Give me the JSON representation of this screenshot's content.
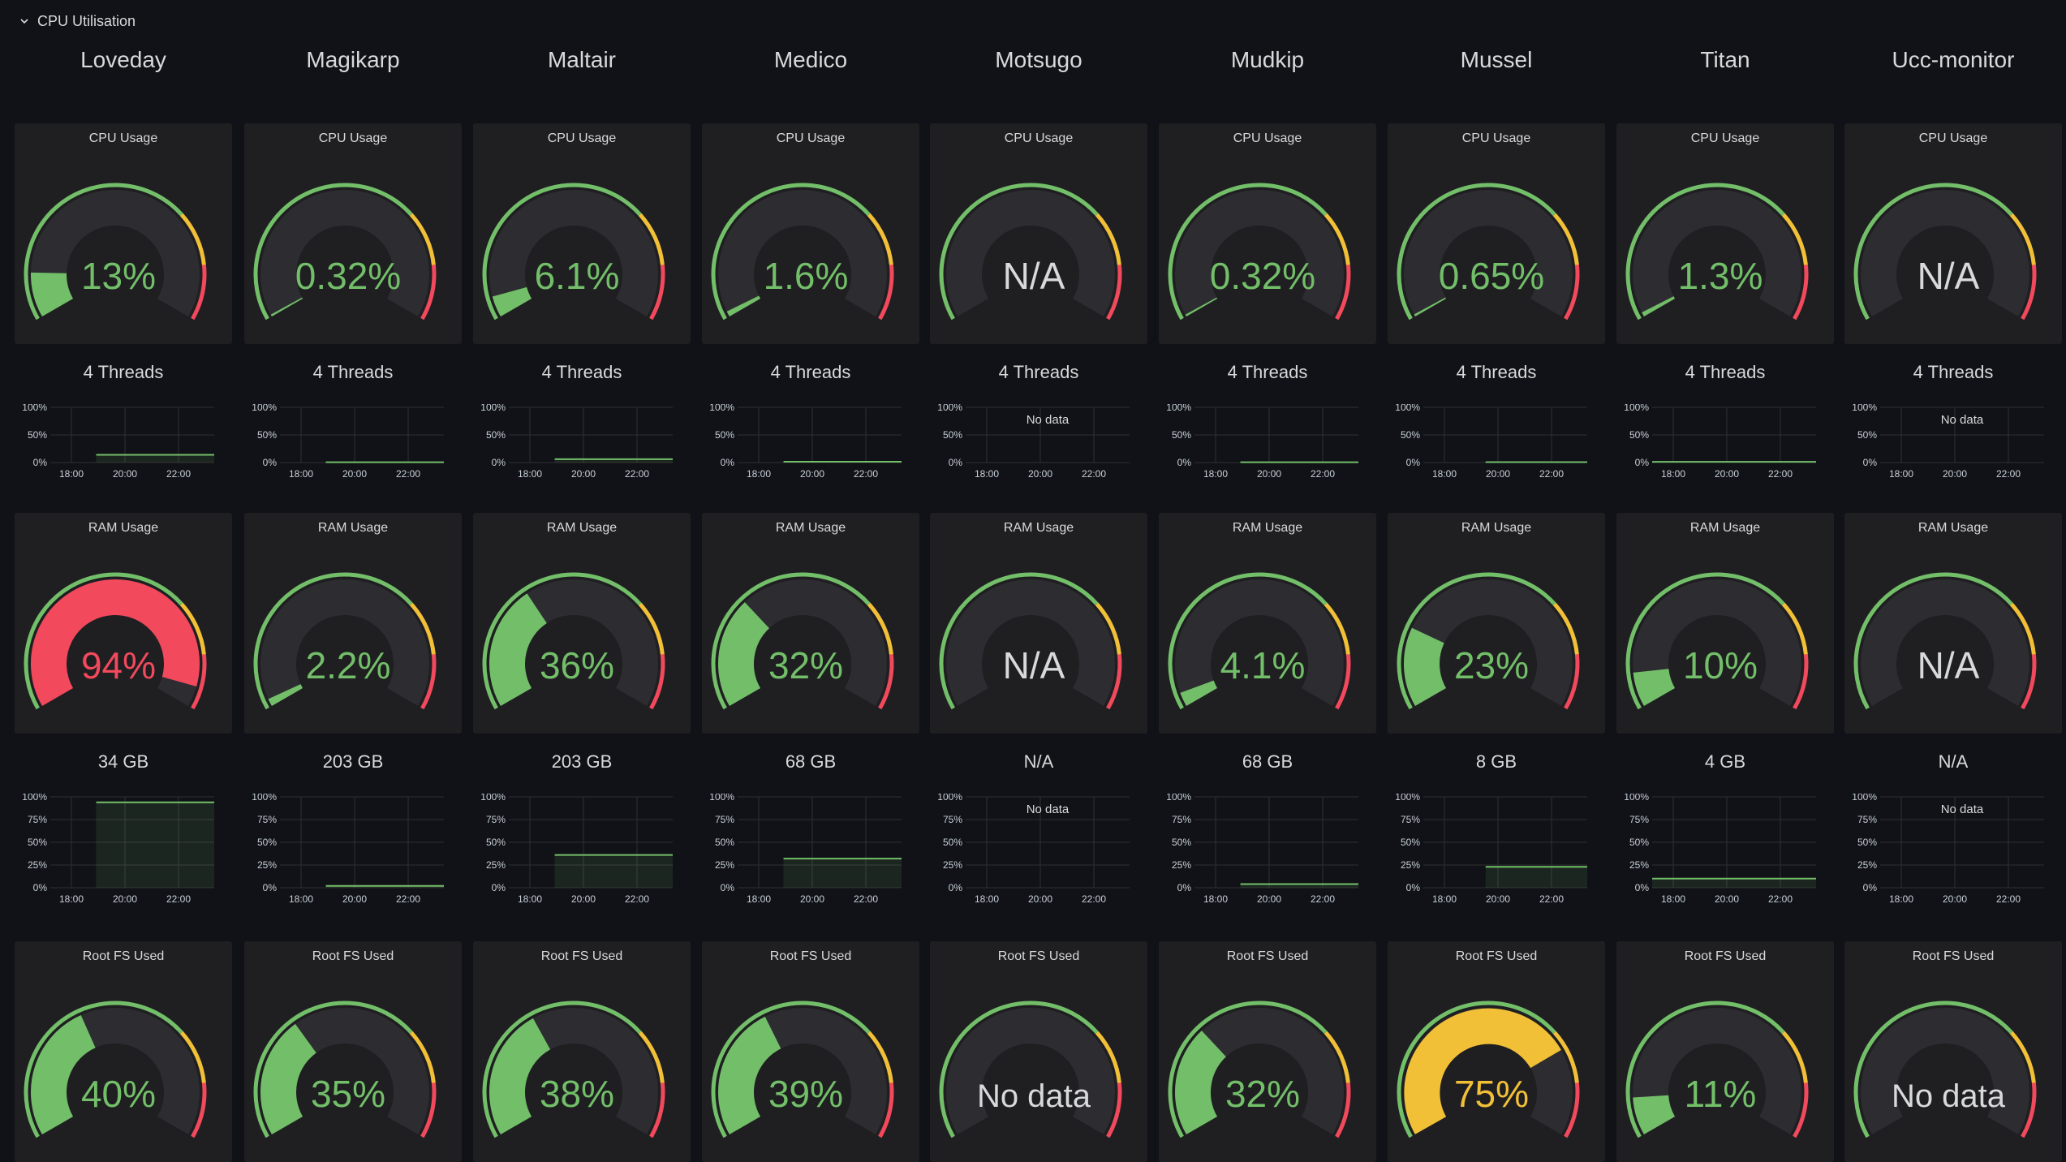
{
  "row": {
    "title": "CPU Utilisation"
  },
  "colors": {
    "green": "#73bf69",
    "yellow": "#f2c037",
    "red": "#f2495c",
    "track": "#2d2d31",
    "panel_bg": "#1f1f22",
    "text_na": "#d8d9da"
  },
  "labels": {
    "cpu_panel": "CPU Usage",
    "ram_panel": "RAM Usage",
    "fs_panel": "Root FS Used",
    "no_data": "No data",
    "x_ticks": [
      "18:00",
      "20:00",
      "22:00"
    ],
    "y_ticks_3": [
      "100%",
      "50%",
      "0%"
    ],
    "y_ticks_5": [
      "100%",
      "75%",
      "50%",
      "25%",
      "0%"
    ]
  },
  "hosts": [
    {
      "name": "Loveday",
      "cpu": {
        "value": 13,
        "text": "13%"
      },
      "threads": "4 Threads",
      "cpu_series": 14,
      "ram": {
        "value": 94,
        "text": "94%"
      },
      "ram_total": "34 GB",
      "ram_series": 94,
      "fs": {
        "value": 40,
        "text": "40%"
      },
      "cpu_start": 0.28,
      "ram_start": 0.28
    },
    {
      "name": "Magikarp",
      "cpu": {
        "value": 0.32,
        "text": "0.32%"
      },
      "threads": "4 Threads",
      "cpu_series": 0.5,
      "ram": {
        "value": 2.2,
        "text": "2.2%"
      },
      "ram_total": "203 GB",
      "ram_series": 2,
      "fs": {
        "value": 35,
        "text": "35%"
      },
      "cpu_start": 0.28,
      "ram_start": 0.28
    },
    {
      "name": "Maltair",
      "cpu": {
        "value": 6.1,
        "text": "6.1%"
      },
      "threads": "4 Threads",
      "cpu_series": 6,
      "ram": {
        "value": 36,
        "text": "36%"
      },
      "ram_total": "203 GB",
      "ram_series": 36,
      "fs": {
        "value": 38,
        "text": "38%"
      },
      "cpu_start": 0.28,
      "ram_start": 0.28
    },
    {
      "name": "Medico",
      "cpu": {
        "value": 1.6,
        "text": "1.6%"
      },
      "threads": "4 Threads",
      "cpu_series": 1.5,
      "ram": {
        "value": 32,
        "text": "32%"
      },
      "ram_total": "68 GB",
      "ram_series": 32,
      "fs": {
        "value": 39,
        "text": "39%"
      },
      "cpu_start": 0.28,
      "ram_start": 0.28
    },
    {
      "name": "Motsugo",
      "cpu": {
        "value": null,
        "text": "N/A"
      },
      "threads": "4 Threads",
      "cpu_series": null,
      "ram": {
        "value": null,
        "text": "N/A"
      },
      "ram_total": "N/A",
      "ram_series": null,
      "fs": {
        "value": null,
        "text": "No data"
      },
      "cpu_start": 0.28,
      "ram_start": 0.28
    },
    {
      "name": "Mudkip",
      "cpu": {
        "value": 0.32,
        "text": "0.32%"
      },
      "threads": "4 Threads",
      "cpu_series": 0.5,
      "ram": {
        "value": 4.1,
        "text": "4.1%"
      },
      "ram_total": "68 GB",
      "ram_series": 4,
      "fs": {
        "value": 32,
        "text": "32%"
      },
      "cpu_start": 0.28,
      "ram_start": 0.28
    },
    {
      "name": "Mussel",
      "cpu": {
        "value": 0.65,
        "text": "0.65%"
      },
      "threads": "4 Threads",
      "cpu_series": 0.7,
      "ram": {
        "value": 23,
        "text": "23%"
      },
      "ram_total": "8 GB",
      "ram_series": 23,
      "fs": {
        "value": 75,
        "text": "75%"
      },
      "cpu_start": 0.38,
      "ram_start": 0.38
    },
    {
      "name": "Titan",
      "cpu": {
        "value": 1.3,
        "text": "1.3%"
      },
      "threads": "4 Threads",
      "cpu_series": 1.2,
      "ram": {
        "value": 10,
        "text": "10%"
      },
      "ram_total": "4 GB",
      "ram_series": 10,
      "fs": {
        "value": 11,
        "text": "11%"
      },
      "cpu_start": 0.0,
      "ram_start": 0.0
    },
    {
      "name": "Ucc-monitor",
      "cpu": {
        "value": null,
        "text": "N/A"
      },
      "threads": "4 Threads",
      "cpu_series": null,
      "ram": {
        "value": null,
        "text": "N/A"
      },
      "ram_total": "N/A",
      "ram_series": null,
      "fs": {
        "value": null,
        "text": "No data"
      },
      "cpu_start": 0.28,
      "ram_start": 0.28
    }
  ]
}
